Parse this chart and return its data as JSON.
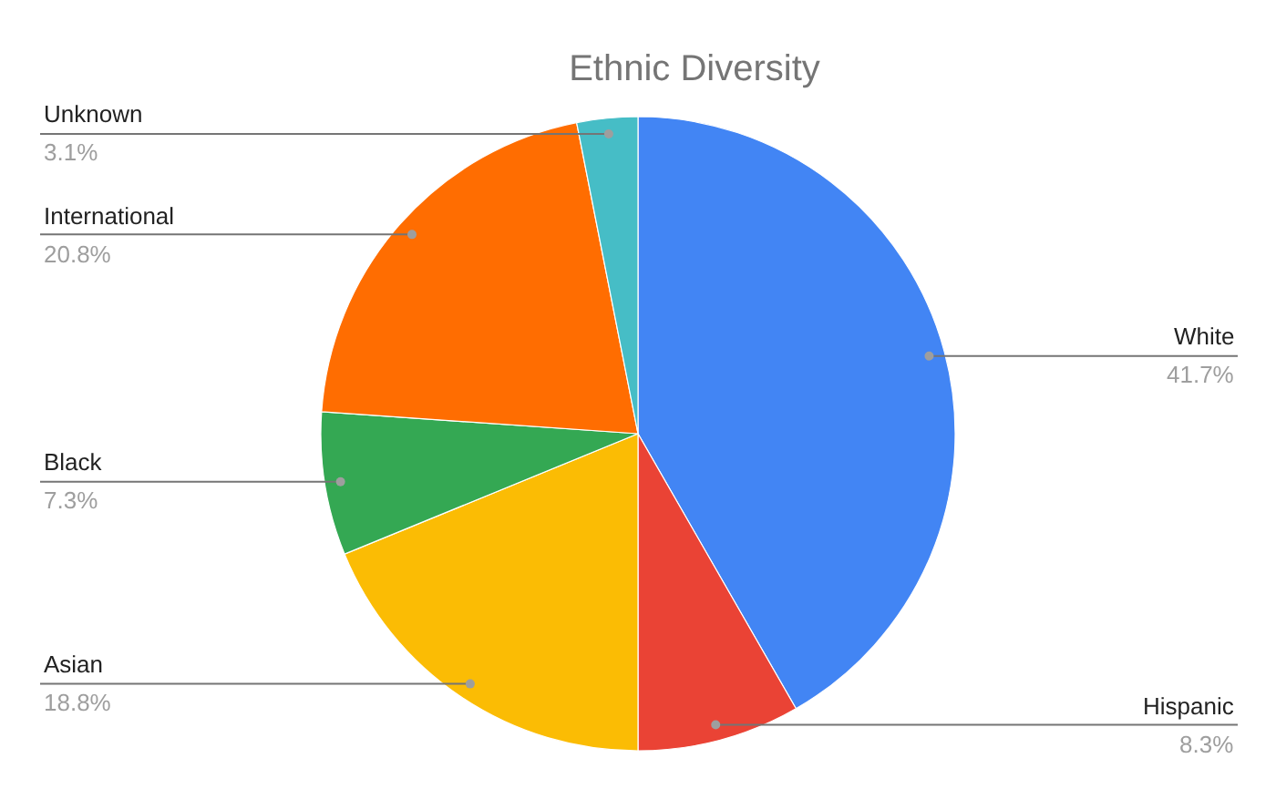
{
  "chart_data": {
    "type": "pie",
    "title": "Ethnic Diversity",
    "categories": [
      "White",
      "Hispanic",
      "Asian",
      "Black",
      "International",
      "Unknown"
    ],
    "values": [
      41.7,
      8.3,
      18.8,
      7.3,
      20.8,
      3.1
    ],
    "value_labels": [
      "41.7%",
      "8.3%",
      "18.8%",
      "7.3%",
      "20.8%",
      "3.1%"
    ],
    "colors": [
      "#4285f4",
      "#ea4335",
      "#fbbc04",
      "#34a853",
      "#ff6d01",
      "#46bdc6"
    ],
    "legend": false
  }
}
